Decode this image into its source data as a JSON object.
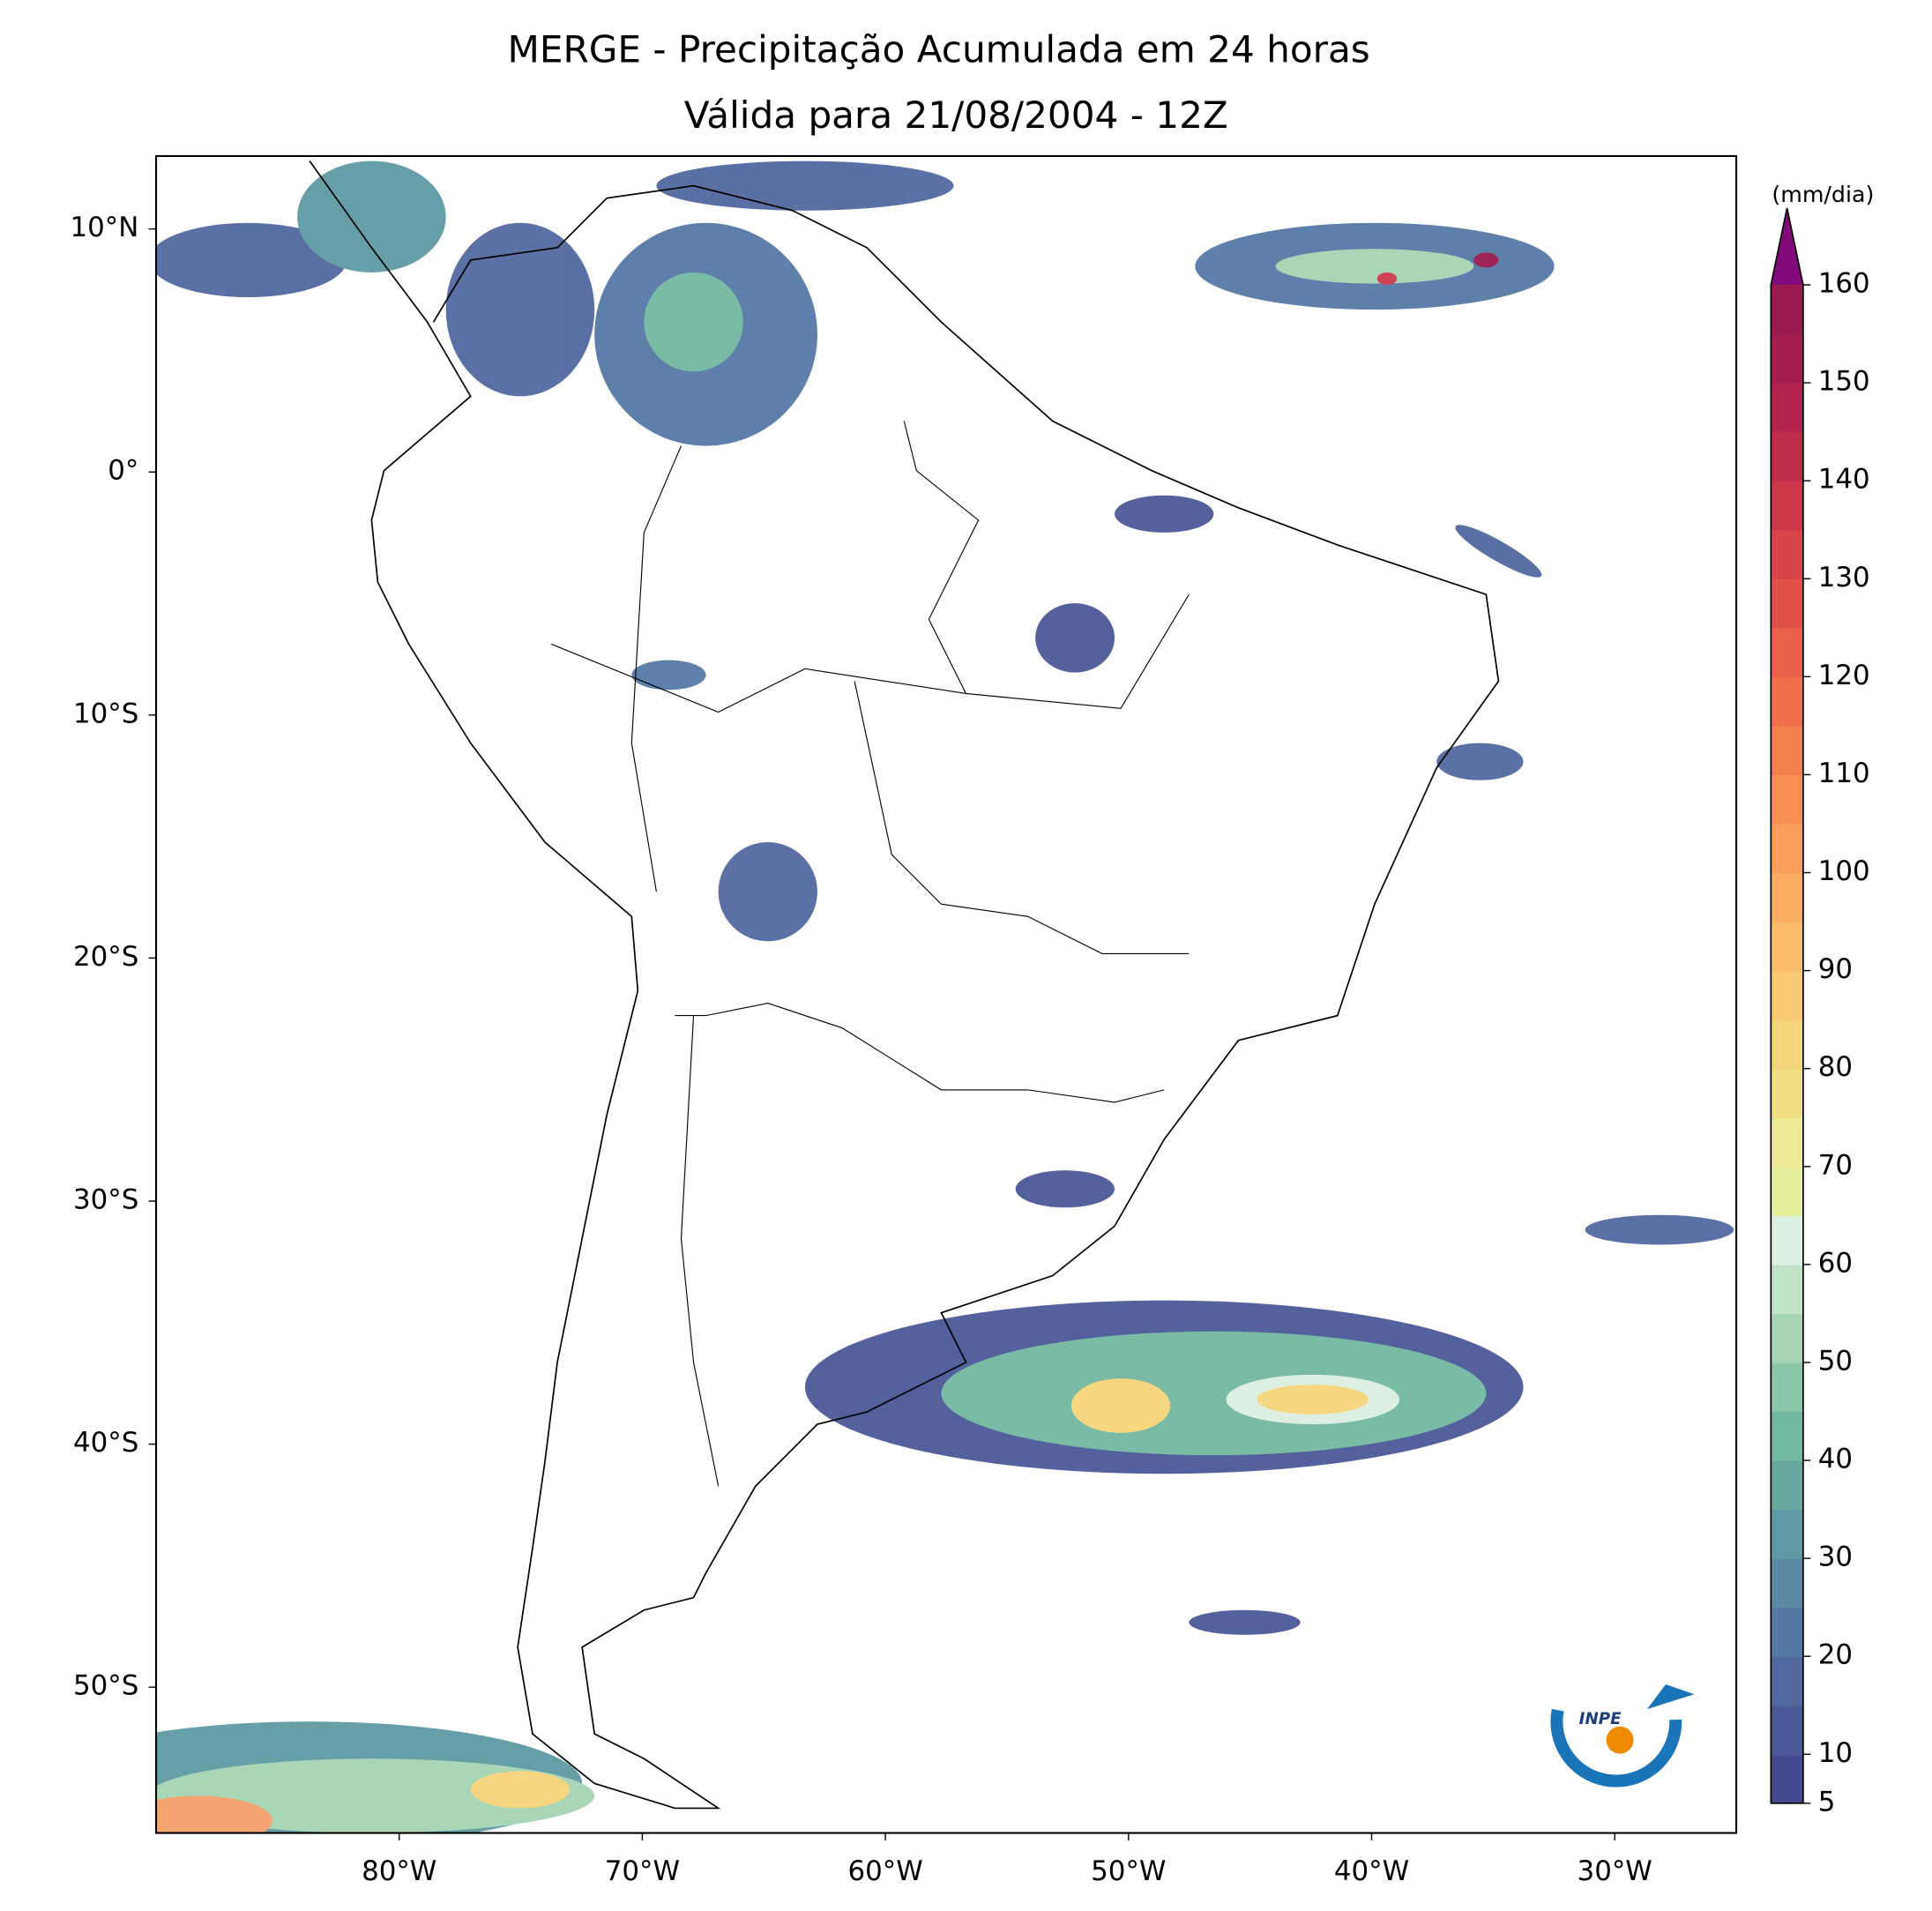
{
  "header": {
    "title": "MERGE - Precipitação Acumulada em 24 horas",
    "subtitle": "Válida para 21/08/2004 - 12Z"
  },
  "map": {
    "xlim": [
      -90,
      -25
    ],
    "ylim": [
      -56,
      13
    ],
    "xticks": [
      {
        "value": -80,
        "label": "80°W"
      },
      {
        "value": -70,
        "label": "70°W"
      },
      {
        "value": -60,
        "label": "60°W"
      },
      {
        "value": -50,
        "label": "50°W"
      },
      {
        "value": -40,
        "label": "40°W"
      },
      {
        "value": -30,
        "label": "30°W"
      }
    ],
    "yticks": [
      {
        "value": 10,
        "label": "10°N"
      },
      {
        "value": 0,
        "label": "0°"
      },
      {
        "value": -10,
        "label": "10°S"
      },
      {
        "value": -20,
        "label": "20°S"
      },
      {
        "value": -30,
        "label": "30°S"
      },
      {
        "value": -40,
        "label": "40°S"
      },
      {
        "value": -50,
        "label": "50°S"
      }
    ]
  },
  "colorbar": {
    "label": "(mm/dia)",
    "lim": [
      5,
      160
    ],
    "ticks": [
      5,
      10,
      20,
      30,
      40,
      50,
      60,
      70,
      80,
      90,
      100,
      110,
      120,
      130,
      140,
      150,
      160
    ],
    "colors": [
      "#464a8f",
      "#4c5998",
      "#52689f",
      "#5579a5",
      "#5a8aa6",
      "#5f9aa4",
      "#67a9a1",
      "#72b8a0",
      "#8ac5a8",
      "#a6d4b5",
      "#c3e3c8",
      "#dcefe0",
      "#e5ee9b",
      "#eee994",
      "#f2df83",
      "#f6d47a",
      "#f8c873",
      "#fabb6b",
      "#fbad63",
      "#fa9e5c",
      "#f78f55",
      "#f47f4f",
      "#ef6f4b",
      "#e95f49",
      "#e25147",
      "#d84447",
      "#cd3848",
      "#c02d4a",
      "#b3244c",
      "#a51d4e",
      "#981a4f"
    ],
    "extend_color": "#830a7a"
  },
  "logo": "INPE"
}
